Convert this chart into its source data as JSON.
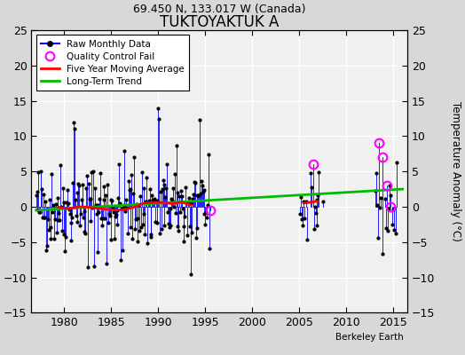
{
  "title": "TUKTOYAKTUK A",
  "subtitle": "69.450 N, 133.017 W (Canada)",
  "ylabel": "Temperature Anomaly (°C)",
  "credit": "Berkeley Earth",
  "xlim": [
    1976.5,
    2016.5
  ],
  "ylim": [
    -15,
    25
  ],
  "yticks": [
    -15,
    -10,
    -5,
    0,
    5,
    10,
    15,
    20,
    25
  ],
  "xticks": [
    1980,
    1985,
    1990,
    1995,
    2000,
    2005,
    2010,
    2015
  ],
  "fig_bg_color": "#d8d8d8",
  "plot_bg_color": "#f0f0f0",
  "raw_color": "#0000ff",
  "ma_color": "#ff0000",
  "trend_color": "#00bb00",
  "qc_color": "#ff00ff",
  "seed": 42,
  "start_year": 1977
}
